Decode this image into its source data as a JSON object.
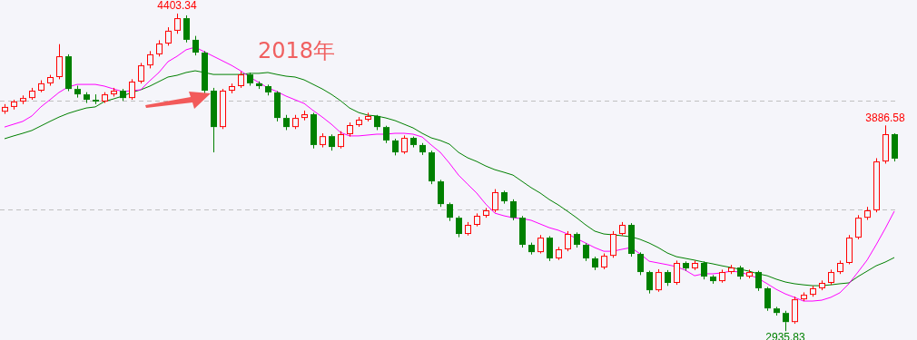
{
  "chart_data": {
    "type": "candlestick",
    "categories": [
      null,
      null,
      null,
      null,
      null,
      null,
      null,
      null,
      null,
      null,
      null,
      null,
      null,
      null,
      null,
      null,
      null,
      null,
      null,
      null,
      null,
      null,
      null,
      null,
      null,
      null,
      null,
      null,
      null,
      null,
      null,
      null,
      null,
      null,
      null,
      null,
      null,
      null,
      null,
      null,
      null,
      null,
      null,
      null,
      null,
      null,
      null,
      null,
      null,
      null,
      null,
      null,
      null,
      null,
      null,
      null,
      null,
      null,
      null,
      null,
      null,
      null,
      null,
      null,
      null,
      null,
      null,
      null,
      null,
      null,
      null,
      null,
      null,
      null,
      null,
      null,
      null,
      null,
      null,
      null,
      null,
      null,
      null,
      null,
      null,
      null,
      null,
      null,
      null,
      null,
      null,
      null,
      null,
      null,
      null,
      null,
      null,
      null,
      null
    ],
    "ohlc": [
      [
        3950,
        3985,
        3940,
        3972
      ],
      [
        3972,
        4005,
        3960,
        3997
      ],
      [
        3997,
        4025,
        3985,
        4013
      ],
      [
        4013,
        4060,
        4005,
        4047
      ],
      [
        4047,
        4095,
        4040,
        4081
      ],
      [
        4081,
        4120,
        4070,
        4110
      ],
      [
        4110,
        4262,
        4100,
        4206
      ],
      [
        4206,
        4215,
        4045,
        4055
      ],
      [
        4055,
        4070,
        4015,
        4030
      ],
      [
        4030,
        4040,
        3990,
        4005
      ],
      [
        4005,
        4030,
        3985,
        3997
      ],
      [
        3997,
        4040,
        3990,
        4030
      ],
      [
        4030,
        4060,
        4020,
        4047
      ],
      [
        4047,
        4055,
        4000,
        4013
      ],
      [
        4013,
        4100,
        4005,
        4089
      ],
      [
        4089,
        4175,
        4080,
        4164
      ],
      [
        4164,
        4230,
        4150,
        4215
      ],
      [
        4215,
        4280,
        4205,
        4265
      ],
      [
        4265,
        4340,
        4255,
        4324
      ],
      [
        4324,
        4403.34,
        4310,
        4382
      ],
      [
        4382,
        4395,
        4270,
        4282
      ],
      [
        4282,
        4300,
        4210,
        4223
      ],
      [
        4223,
        4230,
        4035,
        4047
      ],
      [
        4047,
        4060,
        3762,
        3879
      ],
      [
        3879,
        4055,
        3870,
        4047
      ],
      [
        4047,
        4080,
        4035,
        4068
      ],
      [
        4068,
        4135,
        4060,
        4122
      ],
      [
        4122,
        4130,
        4070,
        4081
      ],
      [
        4081,
        4090,
        4055,
        4068
      ],
      [
        4068,
        4075,
        4025,
        4039
      ],
      [
        4039,
        4045,
        3905,
        3921
      ],
      [
        3921,
        3935,
        3865,
        3879
      ],
      [
        3879,
        3935,
        3870,
        3921
      ],
      [
        3921,
        3955,
        3910,
        3938
      ],
      [
        3938,
        3945,
        3780,
        3796
      ],
      [
        3796,
        3850,
        3785,
        3837
      ],
      [
        3837,
        3845,
        3770,
        3787
      ],
      [
        3787,
        3860,
        3780,
        3846
      ],
      [
        3846,
        3900,
        3835,
        3888
      ],
      [
        3888,
        3925,
        3880,
        3913
      ],
      [
        3913,
        3945,
        3905,
        3930
      ],
      [
        3930,
        3935,
        3865,
        3879
      ],
      [
        3879,
        3885,
        3805,
        3817
      ],
      [
        3817,
        3825,
        3748,
        3762
      ],
      [
        3762,
        3840,
        3755,
        3829
      ],
      [
        3829,
        3835,
        3785,
        3796
      ],
      [
        3796,
        3805,
        3750,
        3762
      ],
      [
        3762,
        3770,
        3615,
        3628
      ],
      [
        3628,
        3635,
        3510,
        3523
      ],
      [
        3523,
        3530,
        3445,
        3460
      ],
      [
        3460,
        3468,
        3370,
        3385
      ],
      [
        3385,
        3440,
        3378,
        3427
      ],
      [
        3427,
        3480,
        3420,
        3469
      ],
      [
        3469,
        3505,
        3460,
        3494
      ],
      [
        3494,
        3592,
        3485,
        3578
      ],
      [
        3578,
        3585,
        3525,
        3536
      ],
      [
        3536,
        3545,
        3448,
        3460
      ],
      [
        3460,
        3468,
        3322,
        3335
      ],
      [
        3335,
        3345,
        3290,
        3301
      ],
      [
        3301,
        3380,
        3295,
        3368
      ],
      [
        3368,
        3375,
        3260,
        3272
      ],
      [
        3272,
        3325,
        3265,
        3314
      ],
      [
        3314,
        3398,
        3305,
        3385
      ],
      [
        3385,
        3392,
        3322,
        3335
      ],
      [
        3335,
        3342,
        3260,
        3272
      ],
      [
        3272,
        3280,
        3218,
        3230
      ],
      [
        3230,
        3295,
        3222,
        3284
      ],
      [
        3284,
        3398,
        3275,
        3385
      ],
      [
        3385,
        3440,
        3378,
        3427
      ],
      [
        3427,
        3435,
        3280,
        3293
      ],
      [
        3293,
        3300,
        3195,
        3209
      ],
      [
        3209,
        3215,
        3110,
        3125
      ],
      [
        3125,
        3222,
        3118,
        3209
      ],
      [
        3209,
        3218,
        3145,
        3159
      ],
      [
        3159,
        3262,
        3150,
        3251
      ],
      [
        3251,
        3258,
        3215,
        3226
      ],
      [
        3226,
        3262,
        3218,
        3251
      ],
      [
        3251,
        3258,
        3175,
        3188
      ],
      [
        3188,
        3195,
        3155,
        3167
      ],
      [
        3167,
        3220,
        3160,
        3209
      ],
      [
        3209,
        3242,
        3200,
        3230
      ],
      [
        3230,
        3238,
        3175,
        3188
      ],
      [
        3188,
        3220,
        3180,
        3209
      ],
      [
        3209,
        3215,
        3122,
        3134
      ],
      [
        3134,
        3140,
        3030,
        3041
      ],
      [
        3041,
        3048,
        3008,
        3020
      ],
      [
        3020,
        3030,
        2935.83,
        2978
      ],
      [
        2978,
        3095,
        2970,
        3083
      ],
      [
        3083,
        3115,
        3075,
        3104
      ],
      [
        3104,
        3145,
        3095,
        3134
      ],
      [
        3134,
        3170,
        3125,
        3159
      ],
      [
        3159,
        3220,
        3150,
        3209
      ],
      [
        3209,
        3262,
        3200,
        3251
      ],
      [
        3251,
        3380,
        3245,
        3368
      ],
      [
        3368,
        3472,
        3360,
        3460
      ],
      [
        3460,
        3510,
        3450,
        3494
      ],
      [
        3494,
        3735,
        3485,
        3720
      ],
      [
        3720,
        3886.58,
        3710,
        3846
      ],
      [
        3846,
        3850,
        3720,
        3733
      ]
    ],
    "colors": [
      "#ff0000",
      "#ff0000",
      "#ff0000",
      "#ff0000",
      "#ff0000",
      "#ff0000",
      "#ff0000",
      "#008000",
      "#008000",
      "#008000",
      "#008000",
      "#ff0000",
      "#ff0000",
      "#008000",
      "#ff0000",
      "#ff0000",
      "#ff0000",
      "#ff0000",
      "#ff0000",
      "#ff0000",
      "#008000",
      "#008000",
      "#008000",
      "#008000",
      "#ff0000",
      "#ff0000",
      "#ff0000",
      "#008000",
      "#008000",
      "#008000",
      "#008000",
      "#008000",
      "#ff0000",
      "#ff0000",
      "#008000",
      "#ff0000",
      "#008000",
      "#ff0000",
      "#ff0000",
      "#ff0000",
      "#ff0000",
      "#008000",
      "#008000",
      "#008000",
      "#ff0000",
      "#008000",
      "#008000",
      "#008000",
      "#008000",
      "#008000",
      "#008000",
      "#ff0000",
      "#ff0000",
      "#ff0000",
      "#ff0000",
      "#008000",
      "#008000",
      "#008000",
      "#008000",
      "#ff0000",
      "#008000",
      "#ff0000",
      "#ff0000",
      "#008000",
      "#008000",
      "#008000",
      "#ff0000",
      "#ff0000",
      "#ff0000",
      "#008000",
      "#008000",
      "#008000",
      "#ff0000",
      "#008000",
      "#ff0000",
      "#008000",
      "#ff0000",
      "#008000",
      "#008000",
      "#ff0000",
      "#ff0000",
      "#008000",
      "#ff0000",
      "#008000",
      "#008000",
      "#008000",
      "#008000",
      "#ff0000",
      "#ff0000",
      "#ff0000",
      "#ff0000",
      "#ff0000",
      "#ff0000",
      "#ff0000",
      "#ff0000",
      "#ff0000",
      "#ff0000",
      "#ff0000",
      "#008000"
    ],
    "series": [
      {
        "type": "line",
        "color": "#ff00ff",
        "values": [
          3879,
          3892,
          3905,
          3930,
          3972,
          4005,
          4039,
          4064,
          4076,
          4076,
          4076,
          4068,
          4055,
          4043,
          4047,
          4051,
          4093,
          4131,
          4181,
          4206,
          4236,
          4248,
          4227,
          4206,
          4185,
          4164,
          4139,
          4110,
          4085,
          4060,
          4043,
          4022,
          4005,
          3988,
          3955,
          3925,
          3892,
          3854,
          3838,
          3838,
          3842,
          3846,
          3846,
          3850,
          3850,
          3846,
          3833,
          3796,
          3762,
          3712,
          3657,
          3615,
          3574,
          3523,
          3481,
          3469,
          3460,
          3456,
          3448,
          3431,
          3414,
          3402,
          3385,
          3364,
          3343,
          3322,
          3305,
          3305,
          3314,
          3322,
          3293,
          3259,
          3251,
          3243,
          3234,
          3217,
          3192,
          3201,
          3201,
          3205,
          3213,
          3209,
          3196,
          3180,
          3155,
          3129,
          3108,
          3092,
          3075,
          3075,
          3079,
          3092,
          3113,
          3155,
          3209,
          3264,
          3335,
          3410,
          3490
        ]
      },
      {
        "type": "line",
        "color": "#008000",
        "values": [
          3825,
          3838,
          3850,
          3863,
          3884,
          3905,
          3925,
          3942,
          3955,
          3967,
          3972,
          3997,
          4009,
          4022,
          4039,
          4051,
          4068,
          4089,
          4110,
          4118,
          4131,
          4139,
          4131,
          4122,
          4122,
          4122,
          4122,
          4127,
          4127,
          4131,
          4122,
          4114,
          4110,
          4097,
          4076,
          4055,
          4030,
          4001,
          3967,
          3946,
          3934,
          3930,
          3921,
          3909,
          3892,
          3875,
          3850,
          3829,
          3817,
          3800,
          3762,
          3737,
          3720,
          3699,
          3682,
          3670,
          3657,
          3628,
          3599,
          3574,
          3544,
          3519,
          3490,
          3460,
          3427,
          3398,
          3385,
          3381,
          3377,
          3372,
          3360,
          3343,
          3322,
          3297,
          3280,
          3272,
          3264,
          3255,
          3247,
          3238,
          3230,
          3222,
          3213,
          3201,
          3192,
          3176,
          3163,
          3155,
          3150,
          3146,
          3146,
          3150,
          3155,
          3159,
          3188,
          3213,
          3238,
          3255,
          3276
        ]
      }
    ],
    "ylim": [
      2895,
      4466
    ],
    "tick_labels": false,
    "ref_lines": [
      {
        "axis": "y",
        "value": 4000,
        "color": "#c0c0c0",
        "line_style": "dashed"
      },
      {
        "axis": "y",
        "value": 3500,
        "color": "#c0c0c0",
        "line_style": "dashed"
      }
    ],
    "annotations": [
      "2018年",
      {
        "text": "4403.34",
        "y": 4403.34
      },
      {
        "text": "2935.83",
        "y": 2935.83
      },
      {
        "text": "3886.58",
        "y": 3886.58
      }
    ]
  }
}
